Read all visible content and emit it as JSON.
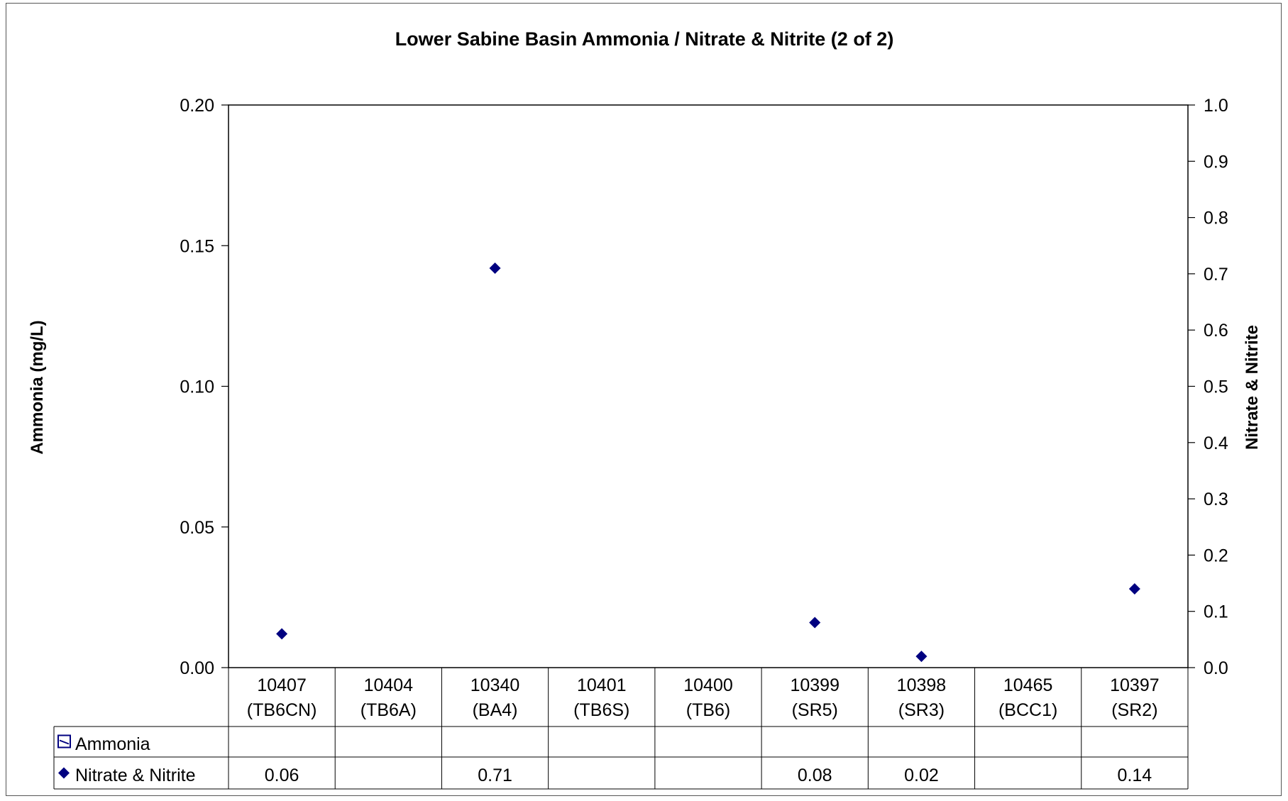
{
  "chart_data": {
    "type": "scatter",
    "title": "Lower Sabine Basin Ammonia / Nitrate & Nitrite (2 of 2)",
    "ylabel_left": "Ammonia (mg/L)",
    "ylabel_right": "Nitrate & Nitrite",
    "ylim_left": [
      0,
      0.2
    ],
    "ylim_right": [
      0,
      1.0
    ],
    "yticks_left": [
      "0.20",
      "0.15",
      "0.10",
      "0.05",
      "0.00"
    ],
    "yticks_right": [
      "1.0",
      "0.9",
      "0.8",
      "0.7",
      "0.6",
      "0.5",
      "0.4",
      "0.3",
      "0.2",
      "0.1",
      "0.0"
    ],
    "categories": [
      {
        "id": "10407",
        "code": "(TB6CN)"
      },
      {
        "id": "10404",
        "code": "(TB6A)"
      },
      {
        "id": "10340",
        "code": "(BA4)"
      },
      {
        "id": "10401",
        "code": "(TB6S)"
      },
      {
        "id": "10400",
        "code": "(TB6)"
      },
      {
        "id": "10399",
        "code": "(SR5)"
      },
      {
        "id": "10398",
        "code": "(SR3)"
      },
      {
        "id": "10465",
        "code": "(BCC1)"
      },
      {
        "id": "10397",
        "code": "(SR2)"
      }
    ],
    "series": [
      {
        "name": "Ammonia",
        "axis": "left",
        "marker": "square-box",
        "values": [
          null,
          null,
          null,
          null,
          null,
          null,
          null,
          null,
          null
        ],
        "labels": [
          "",
          "",
          "",
          "",
          "",
          "",
          "",
          "",
          ""
        ]
      },
      {
        "name": "Nitrate & Nitrite",
        "axis": "right",
        "marker": "diamond",
        "color": "#000080",
        "values": [
          0.06,
          null,
          0.71,
          null,
          null,
          0.08,
          0.02,
          null,
          0.14
        ],
        "labels": [
          "0.06",
          "",
          "0.71",
          "",
          "",
          "0.08",
          "0.02",
          "",
          "0.14"
        ]
      }
    ],
    "grid": false,
    "legend": "data-table"
  }
}
